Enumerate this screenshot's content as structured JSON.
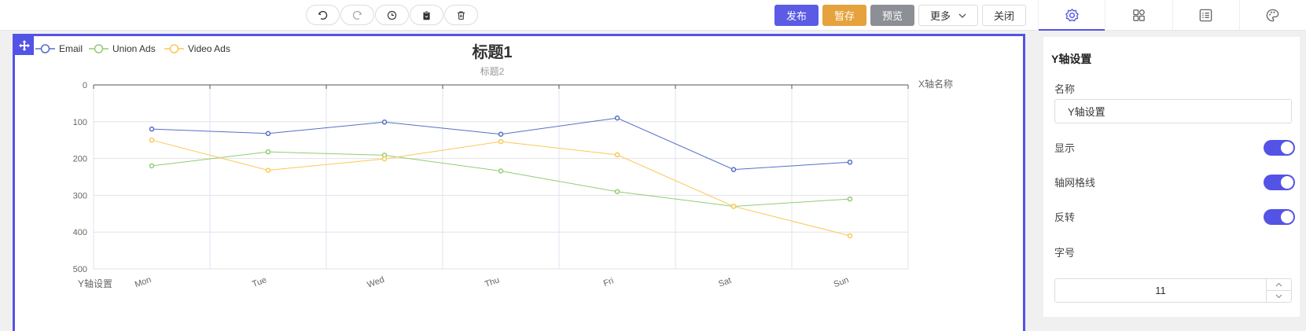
{
  "toolbar": {
    "history_icons": [
      "undo-icon",
      "redo-icon",
      "history-icon",
      "clipboard-icon",
      "trash-icon"
    ],
    "publish": "发布",
    "save_draft": "暂存",
    "preview": "预览",
    "more": "更多",
    "close": "关闭",
    "colors": {
      "primary": "#5b5be6",
      "warning": "#e6a23c",
      "info": "#8c8f95"
    }
  },
  "panel": {
    "tabs": [
      "gear-icon",
      "grid-icon",
      "list-icon",
      "palette-icon"
    ],
    "section_title": "Y轴设置",
    "name_label": "名称",
    "name_value": "Y轴设置",
    "show_label": "显示",
    "show_on": true,
    "grid_label": "轴网格线",
    "grid_on": true,
    "reverse_label": "反转",
    "reverse_on": true,
    "fontsize_label": "字号",
    "fontsize_value": "11"
  },
  "chart_data": {
    "type": "line",
    "title": "标题1",
    "subtitle": "标题2",
    "xlabel": "X轴名称",
    "ylabel": "Y轴设置",
    "categories": [
      "Mon",
      "Tue",
      "Wed",
      "Thu",
      "Fri",
      "Sat",
      "Sun"
    ],
    "series": [
      {
        "name": "Email",
        "color": "#5470c6",
        "values": [
          120,
          132,
          101,
          134,
          90,
          230,
          210
        ]
      },
      {
        "name": "Union Ads",
        "color": "#91cc75",
        "values": [
          220,
          182,
          191,
          234,
          290,
          330,
          310
        ]
      },
      {
        "name": "Video Ads",
        "color": "#fac858",
        "values": [
          150,
          232,
          201,
          154,
          190,
          330,
          410
        ]
      }
    ],
    "y_ticks": [
      "0",
      "100",
      "200",
      "300",
      "400",
      "500"
    ],
    "ylim": [
      0,
      500
    ],
    "y_inverted": true,
    "grid": true,
    "legend": "top-left"
  }
}
